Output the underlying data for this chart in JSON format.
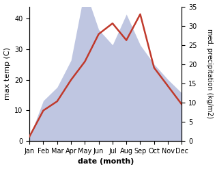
{
  "months": [
    "Jan",
    "Feb",
    "Mar",
    "Apr",
    "May",
    "Jun",
    "Jul",
    "Aug",
    "Sep",
    "Oct",
    "Nov",
    "Dec"
  ],
  "temp_values": [
    1.5,
    10.0,
    13.0,
    20.0,
    26.0,
    35.0,
    38.5,
    33.0,
    41.5,
    24.0,
    18.0,
    12.0
  ],
  "precip_values": [
    1.0,
    10.5,
    14.0,
    21.0,
    39.5,
    29.0,
    25.0,
    33.0,
    25.0,
    20.0,
    16.0,
    12.5
  ],
  "temp_ylim": [
    0,
    44
  ],
  "precip_ylim": [
    0,
    33
  ],
  "temp_yticks": [
    0,
    10,
    20,
    30,
    40
  ],
  "precip_yticks": [
    0,
    5,
    10,
    15,
    20,
    25,
    30,
    35
  ],
  "temp_color": "#c0392b",
  "precip_fill_color": "#aab4d8",
  "precip_fill_alpha": 0.75,
  "xlabel": "date (month)",
  "ylabel_left": "max temp (C)",
  "ylabel_right": "med. precipitation (kg/m2)",
  "bg_color": "#ffffff",
  "xlabel_fontsize": 8,
  "ylabel_fontsize": 8,
  "tick_fontsize": 7,
  "linewidth": 1.8
}
